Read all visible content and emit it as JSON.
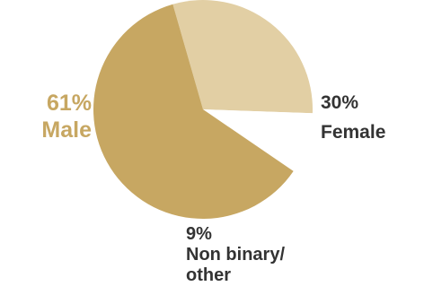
{
  "chart_data": {
    "type": "pie",
    "categories": [
      "Male",
      "Female",
      "Non binary/\nother"
    ],
    "values": [
      61,
      30,
      9
    ],
    "labels": [
      {
        "pct": "61%",
        "name": "Male"
      },
      {
        "pct": "30%",
        "name": "Female"
      },
      {
        "pct": "9%",
        "name": "Non binary/\nother"
      }
    ],
    "colors": [
      "#c7a762",
      "#e2cfa4",
      "#ffffff"
    ],
    "label_colors": [
      "#c7a762",
      "#333333",
      "#333333"
    ]
  }
}
